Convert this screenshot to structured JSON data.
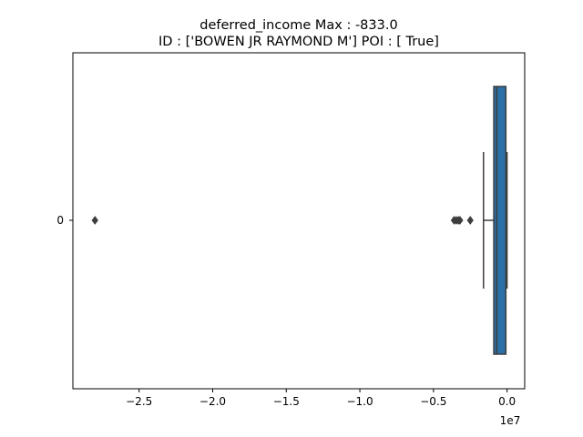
{
  "chart_data": {
    "type": "boxplot",
    "orientation": "horizontal",
    "title_line1": "deferred_income  Max : -833.0",
    "title_line2": "ID : ['BOWEN JR RAYMOND M']  POI : [ True]",
    "xlabel": "",
    "ylabel": "",
    "x_offset_label": "1e7",
    "xlim": [
      -2.95,
      0.12
    ],
    "x_ticks": [
      -2.5,
      -2.0,
      -1.5,
      -1.0,
      -0.5,
      0.0
    ],
    "x_tick_labels": [
      "−2.5",
      "−2.0",
      "−1.5",
      "−1.0",
      "−0.5",
      "0.0"
    ],
    "categories": [
      "0"
    ],
    "box": {
      "q1": -0.09,
      "median": -0.07,
      "q3": -0.008,
      "whisker_low": -0.16,
      "whisker_high": -8e-05,
      "color": "#2a6fa8"
    },
    "outliers": [
      -2.8,
      -0.36,
      -0.345,
      -0.33,
      -0.32,
      -0.25
    ],
    "grid": false,
    "legend": "none"
  }
}
